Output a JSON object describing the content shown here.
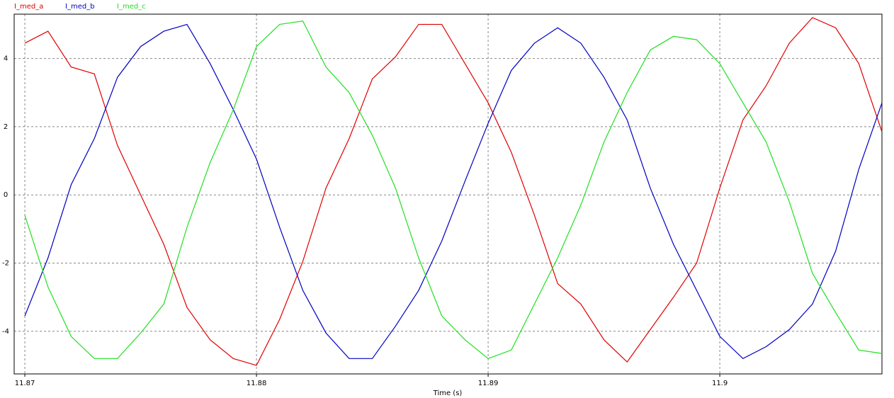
{
  "chart_data": {
    "type": "line",
    "x_label": "Time (s)",
    "x": [
      11.87,
      11.871,
      11.872,
      11.873,
      11.874,
      11.875,
      11.876,
      11.877,
      11.878,
      11.879,
      11.88,
      11.881,
      11.882,
      11.883,
      11.884,
      11.885,
      11.886,
      11.887,
      11.888,
      11.889,
      11.89,
      11.891,
      11.892,
      11.893,
      11.894,
      11.895,
      11.896,
      11.897,
      11.898,
      11.899,
      11.9,
      11.901,
      11.902,
      11.903,
      11.904,
      11.905,
      11.906,
      11.907
    ],
    "series": [
      {
        "name": "I_med_a",
        "color": "#e00000",
        "values": [
          4.45,
          4.8,
          3.75,
          3.55,
          1.45,
          0,
          -1.45,
          -3.3,
          -4.25,
          -4.8,
          -5.0,
          -3.65,
          -1.95,
          0.2,
          1.65,
          3.4,
          4.05,
          5.0,
          5.0,
          3.85,
          2.7,
          1.25,
          -0.6,
          -2.6,
          -3.2,
          -4.25,
          -4.9,
          -3.95,
          -3.0,
          -2.0,
          0.2,
          2.2,
          3.2,
          4.45,
          5.2,
          4.9,
          3.85,
          1.85
        ]
      },
      {
        "name": "I_med_b",
        "color": "#0000c0",
        "values": [
          -3.55,
          -1.85,
          0.3,
          1.65,
          3.45,
          4.35,
          4.8,
          5.0,
          3.85,
          2.5,
          1.05,
          -0.95,
          -2.8,
          -4.05,
          -4.8,
          -4.8,
          -3.85,
          -2.8,
          -1.35,
          0.4,
          2.1,
          3.65,
          4.45,
          4.9,
          4.45,
          3.45,
          2.2,
          0.2,
          -1.45,
          -2.8,
          -4.15,
          -4.8,
          -4.45,
          -3.95,
          -3.2,
          -1.65,
          0.75,
          2.7
        ]
      },
      {
        "name": "I_med_c",
        "color": "#20e020",
        "values": [
          -0.6,
          -2.7,
          -4.15,
          -4.8,
          -4.8,
          -4.05,
          -3.2,
          -0.95,
          0.95,
          2.5,
          4.35,
          5.0,
          5.1,
          3.75,
          3.0,
          1.75,
          0.2,
          -1.85,
          -3.55,
          -4.25,
          -4.8,
          -4.55,
          -3.2,
          -1.85,
          -0.3,
          1.55,
          3.0,
          4.25,
          4.65,
          4.55,
          3.85,
          2.7,
          1.55,
          -0.2,
          -2.3,
          -3.45,
          -4.55,
          -4.65
        ]
      }
    ],
    "xlim": [
      11.86954,
      11.907
    ],
    "ylim": [
      -5.25,
      5.3
    ],
    "xticks": [
      11.87,
      11.88,
      11.89,
      11.9
    ],
    "yticks": [
      -4,
      -2,
      0,
      2,
      4
    ],
    "grid": true
  }
}
